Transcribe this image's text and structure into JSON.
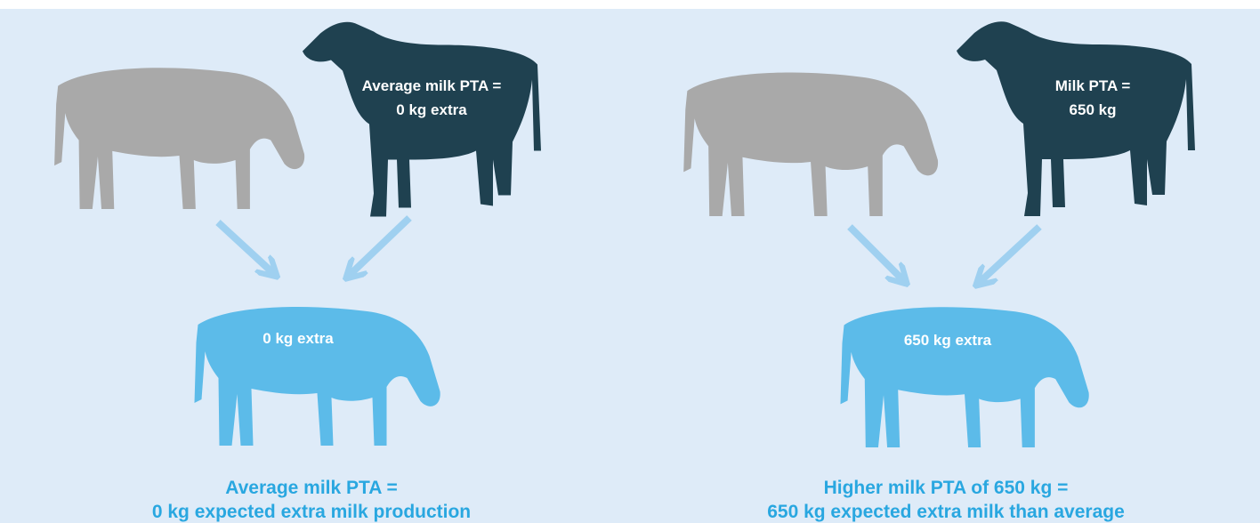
{
  "panels": [
    {
      "parent_label": [
        "Average milk PTA =",
        "0 kg extra"
      ],
      "offspring_label": "0 kg extra",
      "caption": [
        "Average milk PTA =",
        "0 kg expected extra milk production"
      ]
    },
    {
      "parent_label": [
        "Milk PTA =",
        "650 kg"
      ],
      "offspring_label": "650 kg extra",
      "caption": [
        "Higher milk PTA of 650 kg =",
        "650 kg expected extra milk than average"
      ]
    }
  ]
}
